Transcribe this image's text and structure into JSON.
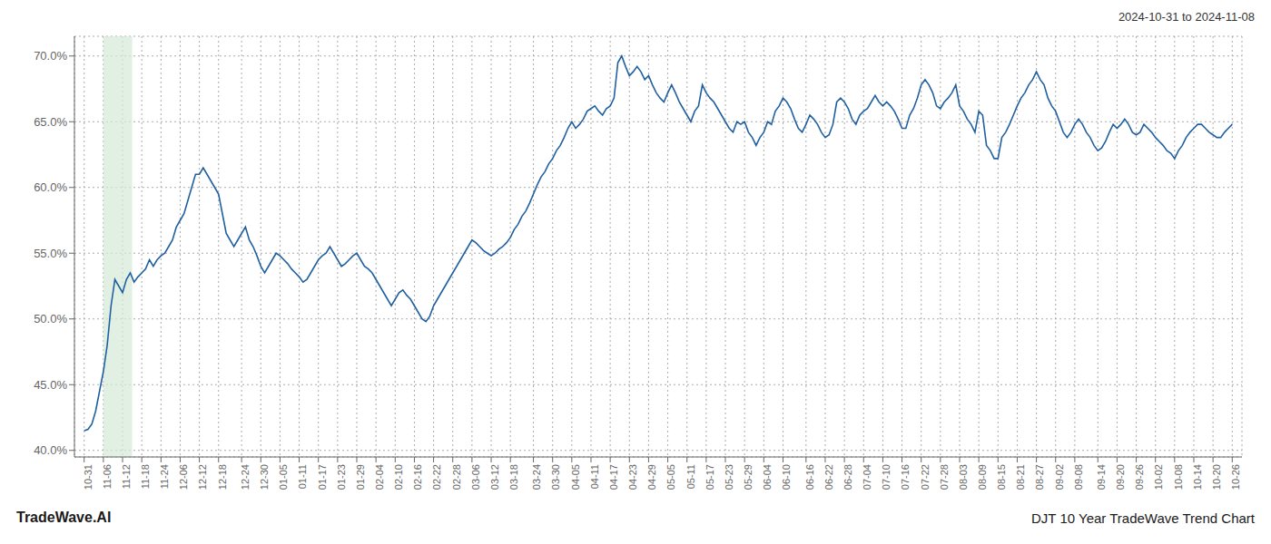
{
  "chart_data": {
    "type": "line",
    "title": "DJT 10 Year TradeWave Trend Chart",
    "subtitle": "2024-10-31 to 2024-11-08",
    "annotations": [
      "TradeWave.AI"
    ],
    "color": "#2060a0",
    "grid": true,
    "ylim": [
      0.395,
      0.715
    ],
    "yticks": [
      {
        "value": 0.4,
        "label": "40.0%"
      },
      {
        "value": 0.45,
        "label": "45.0%"
      },
      {
        "value": 0.5,
        "label": "50.0%"
      },
      {
        "value": 0.55,
        "label": "55.0%"
      },
      {
        "value": 0.6,
        "label": "60.0%"
      },
      {
        "value": 0.65,
        "label": "65.0%"
      },
      {
        "value": 0.7,
        "label": "70.0%"
      }
    ],
    "shade": {
      "start": 1,
      "end": 2.5,
      "color": "#d6ead8"
    },
    "categories": [
      "10-31",
      null,
      null,
      null,
      null,
      "11-06",
      null,
      null,
      null,
      null,
      "11-12",
      null,
      null,
      null,
      null,
      "11-18",
      null,
      null,
      null,
      null,
      "11-24",
      null,
      null,
      null,
      null,
      "12-06",
      null,
      null,
      null,
      null,
      "12-12",
      null,
      null,
      null,
      null,
      "12-18",
      null,
      null,
      null,
      null,
      null,
      "12-24",
      null,
      null,
      null,
      null,
      "12-30",
      null,
      null,
      null,
      null,
      "01-05",
      null,
      null,
      null,
      null,
      "01-11",
      null,
      null,
      null,
      null,
      "01-17",
      null,
      null,
      null,
      null,
      "01-23",
      null,
      null,
      null,
      null,
      "01-29",
      null,
      null,
      null,
      null,
      "02-04",
      null,
      null,
      null,
      null,
      "02-10",
      null,
      null,
      null,
      null,
      "02-16",
      null,
      null,
      null,
      null,
      "02-22",
      null,
      null,
      null,
      null,
      "02-28",
      null,
      null,
      null,
      null,
      "03-06",
      null,
      null,
      null,
      null,
      "03-12",
      null,
      null,
      null,
      null,
      "03-18",
      null,
      null,
      null,
      null,
      null,
      "03-24",
      null,
      null,
      null,
      null,
      "03-30",
      null,
      null,
      null,
      null,
      "04-05",
      null,
      null,
      null,
      null,
      "04-11",
      null,
      null,
      null,
      null,
      "04-17",
      null,
      null,
      null,
      null,
      "04-23",
      null,
      null,
      null,
      null,
      "04-29",
      null,
      null,
      null,
      null,
      "05-05",
      null,
      null,
      null,
      null,
      "05-11",
      null,
      null,
      null,
      null,
      "05-17",
      null,
      null,
      null,
      null,
      "05-23",
      null,
      null,
      null,
      null,
      "05-29",
      null,
      null,
      null,
      null,
      "06-04",
      null,
      null,
      null,
      null,
      "06-10",
      null,
      null,
      null,
      null,
      null,
      "06-16",
      null,
      null,
      null,
      null,
      "06-22",
      null,
      null,
      null,
      null,
      "06-28",
      null,
      null,
      null,
      null,
      "07-04",
      null,
      null,
      null,
      null,
      "07-10",
      null,
      null,
      null,
      null,
      "07-16",
      null,
      null,
      null,
      null,
      "07-22",
      null,
      null,
      null,
      null,
      "07-28",
      null,
      null,
      null,
      null,
      "08-03",
      null,
      null,
      null,
      null,
      "08-09",
      null,
      null,
      null,
      null,
      "08-15",
      null,
      null,
      null,
      null,
      "08-21",
      null,
      null,
      null,
      null,
      "08-27",
      null,
      null,
      null,
      null,
      "09-02",
      null,
      null,
      null,
      null,
      "09-08",
      null,
      null,
      null,
      null,
      null,
      "09-14",
      null,
      null,
      null,
      null,
      "09-20",
      null,
      null,
      null,
      null,
      "09-26",
      null,
      null,
      null,
      null,
      "10-02",
      null,
      null,
      null,
      null,
      "10-08",
      null,
      null,
      null,
      null,
      "10-14",
      null,
      null,
      null,
      null,
      "10-20",
      null,
      null,
      null,
      null,
      "10-26"
    ],
    "values": [
      0.415,
      0.416,
      0.42,
      0.43,
      0.445,
      0.46,
      0.48,
      0.51,
      0.53,
      0.525,
      0.52,
      0.53,
      0.535,
      0.528,
      0.532,
      0.535,
      0.538,
      0.545,
      0.54,
      0.545,
      0.548,
      0.55,
      0.555,
      0.56,
      0.57,
      0.575,
      0.58,
      0.59,
      0.6,
      0.61,
      0.61,
      0.615,
      0.61,
      0.605,
      0.6,
      0.595,
      0.58,
      0.565,
      0.56,
      0.555,
      0.56,
      0.565,
      0.57,
      0.56,
      0.555,
      0.548,
      0.54,
      0.535,
      0.54,
      0.545,
      0.55,
      0.548,
      0.545,
      0.542,
      0.538,
      0.535,
      0.532,
      0.528,
      0.53,
      0.535,
      0.54,
      0.545,
      0.548,
      0.55,
      0.555,
      0.55,
      0.545,
      0.54,
      0.542,
      0.545,
      0.548,
      0.55,
      0.545,
      0.54,
      0.538,
      0.535,
      0.53,
      0.525,
      0.52,
      0.515,
      0.51,
      0.515,
      0.52,
      0.522,
      0.518,
      0.515,
      0.51,
      0.505,
      0.5,
      0.498,
      0.502,
      0.51,
      0.515,
      0.52,
      0.525,
      0.53,
      0.535,
      0.54,
      0.545,
      0.55,
      0.555,
      0.56,
      0.558,
      0.555,
      0.552,
      0.55,
      0.548,
      0.55,
      0.553,
      0.555,
      0.558,
      0.562,
      0.568,
      0.572,
      0.578,
      0.582,
      0.588,
      0.595,
      0.602,
      0.608,
      0.612,
      0.618,
      0.622,
      0.628,
      0.632,
      0.638,
      0.645,
      0.65,
      0.645,
      0.648,
      0.652,
      0.658,
      0.66,
      0.662,
      0.658,
      0.655,
      0.66,
      0.662,
      0.668,
      0.695,
      0.7,
      0.692,
      0.685,
      0.688,
      0.692,
      0.688,
      0.682,
      0.685,
      0.678,
      0.672,
      0.668,
      0.665,
      0.672,
      0.678,
      0.672,
      0.665,
      0.66,
      0.655,
      0.65,
      0.658,
      0.662,
      0.678,
      0.672,
      0.668,
      0.665,
      0.66,
      0.655,
      0.65,
      0.645,
      0.642,
      0.65,
      0.648,
      0.65,
      0.642,
      0.638,
      0.632,
      0.638,
      0.642,
      0.65,
      0.648,
      0.658,
      0.662,
      0.668,
      0.665,
      0.66,
      0.652,
      0.645,
      0.642,
      0.648,
      0.655,
      0.652,
      0.648,
      0.642,
      0.638,
      0.64,
      0.648,
      0.665,
      0.668,
      0.665,
      0.66,
      0.652,
      0.648,
      0.655,
      0.658,
      0.66,
      0.665,
      0.67,
      0.665,
      0.662,
      0.665,
      0.662,
      0.658,
      0.652,
      0.645,
      0.645,
      0.655,
      0.66,
      0.668,
      0.678,
      0.682,
      0.678,
      0.672,
      0.662,
      0.66,
      0.665,
      0.668,
      0.672,
      0.678,
      0.662,
      0.658,
      0.652,
      0.648,
      0.642,
      0.658,
      0.655,
      0.632,
      0.628,
      0.622,
      0.622,
      0.638,
      0.642,
      0.648,
      0.655,
      0.662,
      0.668,
      0.672,
      0.678,
      0.682,
      0.688,
      0.682,
      0.678,
      0.668,
      0.662,
      0.658,
      0.65,
      0.642,
      0.638,
      0.642,
      0.648,
      0.652,
      0.648,
      0.642,
      0.638,
      0.632,
      0.628,
      0.63,
      0.635,
      0.642,
      0.648,
      0.645,
      0.648,
      0.652,
      0.648,
      0.642,
      0.64,
      0.642,
      0.648,
      0.645,
      0.642,
      0.638,
      0.635,
      0.632,
      0.628,
      0.626,
      0.622,
      0.628,
      0.632,
      0.638,
      0.642,
      0.645,
      0.648,
      0.648,
      0.645,
      0.642,
      0.64,
      0.638,
      0.638,
      0.642,
      0.645,
      0.648
    ]
  }
}
